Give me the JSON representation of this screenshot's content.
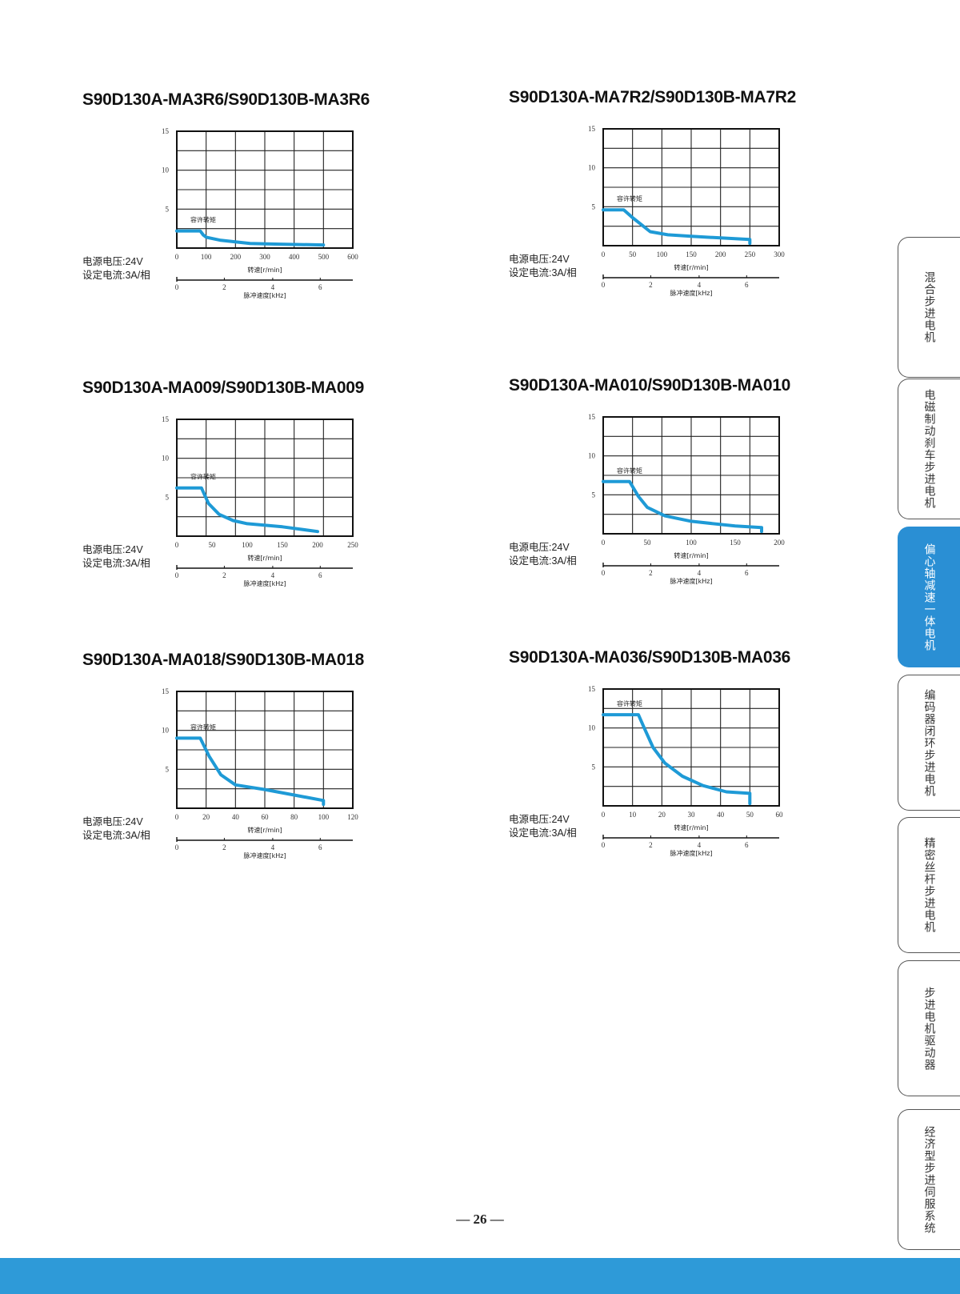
{
  "colors": {
    "curve": "#1e9ad6",
    "tab_active": "#2a8fd4",
    "footer_bar": "#2e9ad8"
  },
  "labels": {
    "ylim": [
      0,
      15
    ],
    "yticks": [
      "15",
      "10",
      "5"
    ],
    "speed_axis_label": "转速[r/min]",
    "pulse_axis_label": "脉冲速度[kHz]",
    "pulse_ticks": [
      "0",
      "2",
      "4",
      "6"
    ],
    "allowed_torque": "容许转矩",
    "voltage": "电源电压:24V",
    "current": "设定电流:3A/相"
  },
  "chart_data": [
    {
      "type": "line",
      "title": "S90D130A-MA3R6/S90D130B-MA3R6",
      "xticks": [
        0,
        100,
        200,
        300,
        400,
        500,
        600
      ],
      "xlim": [
        0,
        600
      ],
      "ylim": [
        0,
        15
      ],
      "x": [
        0,
        80,
        90,
        100,
        150,
        250,
        350,
        500
      ],
      "y": [
        2.2,
        2.2,
        1.7,
        1.4,
        1.0,
        0.6,
        0.5,
        0.4
      ]
    },
    {
      "type": "line",
      "title": "S90D130A-MA7R2/S90D130B-MA7R2",
      "xticks": [
        0,
        50,
        100,
        150,
        200,
        250,
        300
      ],
      "xlim": [
        0,
        300
      ],
      "ylim": [
        0,
        15
      ],
      "x": [
        0,
        35,
        50,
        65,
        80,
        110,
        150,
        200,
        250,
        250
      ],
      "y": [
        4.6,
        4.6,
        3.6,
        2.7,
        1.8,
        1.4,
        1.2,
        1.0,
        0.8,
        0.3
      ]
    },
    {
      "type": "line",
      "title": "S90D130A-MA009/S90D130B-MA009",
      "xticks": [
        0,
        50,
        100,
        150,
        200,
        250
      ],
      "xlim": [
        0,
        250
      ],
      "ylim": [
        0,
        15
      ],
      "x": [
        0,
        35,
        45,
        60,
        80,
        100,
        150,
        200
      ],
      "y": [
        6.2,
        6.2,
        4.2,
        2.8,
        2.0,
        1.6,
        1.2,
        0.6
      ]
    },
    {
      "type": "line",
      "title": "S90D130A-MA010/S90D130B-MA010",
      "xticks": [
        0,
        50,
        100,
        150,
        200
      ],
      "xlim": [
        0,
        200
      ],
      "ylim": [
        0,
        15
      ],
      "x": [
        0,
        30,
        40,
        50,
        70,
        100,
        150,
        180,
        180
      ],
      "y": [
        6.7,
        6.7,
        4.8,
        3.4,
        2.3,
        1.6,
        1.0,
        0.8,
        0.3
      ]
    },
    {
      "type": "line",
      "title": "S90D130A-MA018/S90D130B-MA018",
      "xticks": [
        0,
        20,
        40,
        60,
        80,
        100,
        120
      ],
      "xlim": [
        0,
        120
      ],
      "ylim": [
        0,
        15
      ],
      "x": [
        0,
        16,
        22,
        30,
        40,
        60,
        80,
        100,
        100
      ],
      "y": [
        9.0,
        9.0,
        6.7,
        4.3,
        3.0,
        2.4,
        1.7,
        1.0,
        0.5
      ]
    },
    {
      "type": "line",
      "title": "S90D130A-MA036/S90D130B-MA036",
      "xticks": [
        0,
        10,
        20,
        30,
        40,
        50,
        60
      ],
      "xlim": [
        0,
        60
      ],
      "ylim": [
        0,
        15
      ],
      "x": [
        0,
        12,
        14,
        17,
        21,
        27,
        34,
        42,
        50,
        50
      ],
      "y": [
        11.7,
        11.7,
        10.0,
        7.5,
        5.5,
        3.8,
        2.6,
        1.8,
        1.6,
        0.3
      ]
    }
  ],
  "side_tabs": [
    {
      "label": "混合步进电机",
      "active": false
    },
    {
      "label": "电磁制动刹车步进电机",
      "active": false
    },
    {
      "label": "偏心轴减速一体电机",
      "active": true
    },
    {
      "label": "编码器闭环步进电机",
      "active": false
    },
    {
      "label": "精密丝杆步进电机",
      "active": false
    },
    {
      "label": "步进电机驱动器",
      "active": false
    },
    {
      "label": "经济型步进伺服系统",
      "active": false
    }
  ],
  "page_number": "— 26 —"
}
